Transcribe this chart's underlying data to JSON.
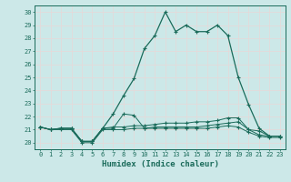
{
  "title": "",
  "xlabel": "Humidex (Indice chaleur)",
  "ylabel": "",
  "bg_color": "#cce8e8",
  "grid_color": "#b0d8d8",
  "line_color": "#1a6b5a",
  "xlim": [
    -0.5,
    23.5
  ],
  "ylim": [
    19.5,
    30.5
  ],
  "yticks": [
    20,
    21,
    22,
    23,
    24,
    25,
    26,
    27,
    28,
    29,
    30
  ],
  "xticks": [
    0,
    1,
    2,
    3,
    4,
    5,
    6,
    7,
    8,
    9,
    10,
    11,
    12,
    13,
    14,
    15,
    16,
    17,
    18,
    19,
    20,
    21,
    22,
    23
  ],
  "series_main": [
    21.2,
    21.0,
    21.1,
    21.1,
    20.1,
    20.1,
    21.1,
    22.2,
    23.6,
    24.9,
    27.2,
    28.2,
    30.0,
    28.5,
    29.0,
    28.5,
    28.5,
    29.0,
    28.2,
    25.0,
    22.9,
    21.1,
    20.5,
    20.5
  ],
  "series_low1": [
    21.2,
    21.0,
    21.1,
    21.1,
    20.1,
    20.1,
    21.1,
    21.1,
    22.2,
    22.1,
    21.1,
    21.2,
    21.2,
    21.2,
    21.2,
    21.2,
    21.3,
    21.4,
    21.5,
    21.6,
    21.0,
    20.9,
    20.5,
    20.5
  ],
  "series_low2": [
    21.2,
    21.0,
    21.1,
    21.1,
    20.1,
    20.1,
    21.1,
    21.2,
    21.2,
    21.3,
    21.3,
    21.4,
    21.5,
    21.5,
    21.5,
    21.6,
    21.6,
    21.7,
    21.9,
    21.9,
    21.0,
    20.6,
    20.5,
    20.5
  ],
  "series_low3": [
    21.2,
    21.0,
    21.0,
    21.0,
    20.0,
    20.0,
    21.0,
    21.0,
    21.0,
    21.1,
    21.1,
    21.1,
    21.1,
    21.1,
    21.1,
    21.1,
    21.1,
    21.2,
    21.3,
    21.2,
    20.8,
    20.5,
    20.4,
    20.4
  ]
}
